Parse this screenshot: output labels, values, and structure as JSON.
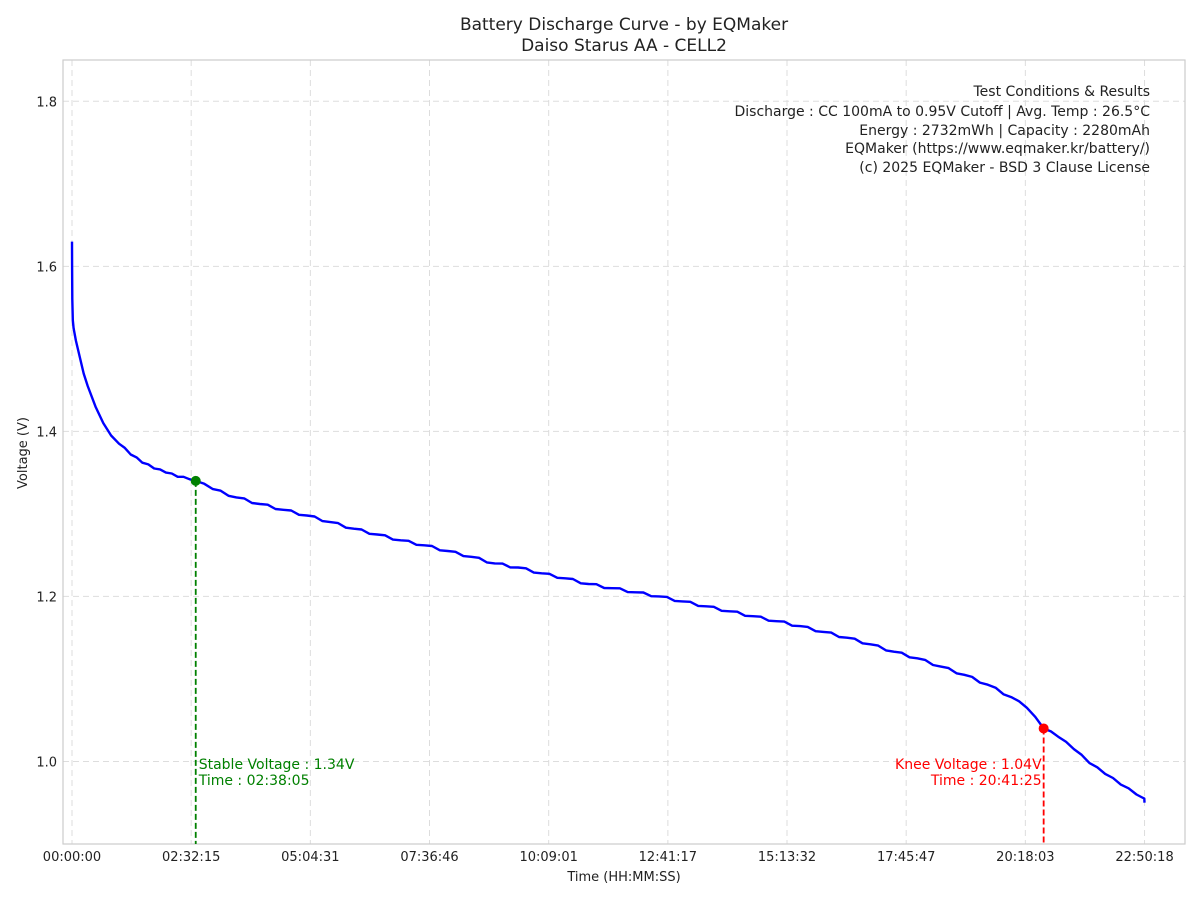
{
  "chart_data": {
    "type": "line",
    "title": "Battery Discharge Curve - by EQMaker",
    "subtitle": "Daiso Starus AA - CELL2",
    "xlabel": "Time (HH:MM:SS)",
    "ylabel": "Voltage (V)",
    "x_unit": "HH:MM:SS",
    "xlim": [
      "-00:11:30",
      "23:42:00"
    ],
    "ylim": [
      0.9,
      1.85
    ],
    "x_ticks": [
      "00:00:00",
      "02:32:15",
      "05:04:31",
      "07:36:46",
      "10:09:01",
      "12:41:17",
      "15:13:32",
      "17:45:47",
      "20:18:03",
      "22:50:18"
    ],
    "y_ticks": [
      1.0,
      1.2,
      1.4,
      1.6,
      1.8
    ],
    "grid": true,
    "legend": "none",
    "colors": {
      "line": "#0000ff",
      "stable": "#008000",
      "knee": "#ff0000",
      "grid": "#dddddd",
      "frame": "#cccccc"
    },
    "series": [
      {
        "x": [
          "00:00:00",
          "00:00:10",
          "00:00:20",
          "00:01:00",
          "00:02:00",
          "00:05:00",
          "00:10:00",
          "00:15:00",
          "00:20:00",
          "00:30:00",
          "00:40:00",
          "00:50:00",
          "01:00:00",
          "01:15:00",
          "01:30:00",
          "01:45:00",
          "02:00:00",
          "02:15:00",
          "02:30:00",
          "02:38:05",
          "03:00:00",
          "03:30:00",
          "04:00:00",
          "04:30:00",
          "05:00:00",
          "05:30:00",
          "06:00:00",
          "06:30:00",
          "07:00:00",
          "07:30:00",
          "08:00:00",
          "08:30:00",
          "09:00:00",
          "09:30:00",
          "10:00:00",
          "10:30:00",
          "11:00:00",
          "11:30:00",
          "12:00:00",
          "12:30:00",
          "13:00:00",
          "13:30:00",
          "14:00:00",
          "14:30:00",
          "15:00:00",
          "15:30:00",
          "16:00:00",
          "16:30:00",
          "17:00:00",
          "17:30:00",
          "18:00:00",
          "18:30:00",
          "19:00:00",
          "19:30:00",
          "20:00:00",
          "20:20:00",
          "20:41:25",
          "21:00:00",
          "21:20:00",
          "21:40:00",
          "22:00:00",
          "22:20:00",
          "22:40:00",
          "22:50:00",
          "22:50:18"
        ],
        "y": [
          1.63,
          1.6,
          1.56,
          1.535,
          1.525,
          1.51,
          1.49,
          1.47,
          1.455,
          1.43,
          1.41,
          1.395,
          1.385,
          1.372,
          1.362,
          1.355,
          1.35,
          1.345,
          1.342,
          1.34,
          1.33,
          1.32,
          1.312,
          1.305,
          1.298,
          1.29,
          1.282,
          1.275,
          1.268,
          1.262,
          1.255,
          1.248,
          1.24,
          1.235,
          1.228,
          1.222,
          1.215,
          1.21,
          1.205,
          1.2,
          1.194,
          1.188,
          1.182,
          1.176,
          1.17,
          1.164,
          1.157,
          1.15,
          1.142,
          1.133,
          1.125,
          1.115,
          1.105,
          1.093,
          1.078,
          1.065,
          1.04,
          1.03,
          1.015,
          0.998,
          0.985,
          0.972,
          0.96,
          0.955,
          0.95
        ]
      }
    ],
    "annotations": {
      "stable": {
        "time": "02:38:05",
        "voltage": 1.34,
        "line1": "Stable Voltage : 1.34V",
        "line2": "Time : 02:38:05"
      },
      "knee": {
        "time": "20:41:25",
        "voltage": 1.04,
        "line1": "Knee Voltage : 1.04V",
        "line2": "Time : 20:41:25"
      }
    },
    "info_box": {
      "lines": [
        "Test Conditions & Results",
        "Discharge : CC 100mA to 0.95V Cutoff | Avg. Temp : 26.5°C",
        "Energy : 2732mWh | Capacity : 2280mAh",
        "EQMaker (https://www.eqmaker.kr/battery/)",
        "(c) 2025 EQMaker - BSD 3 Clause License"
      ],
      "placement": "top-right"
    }
  }
}
